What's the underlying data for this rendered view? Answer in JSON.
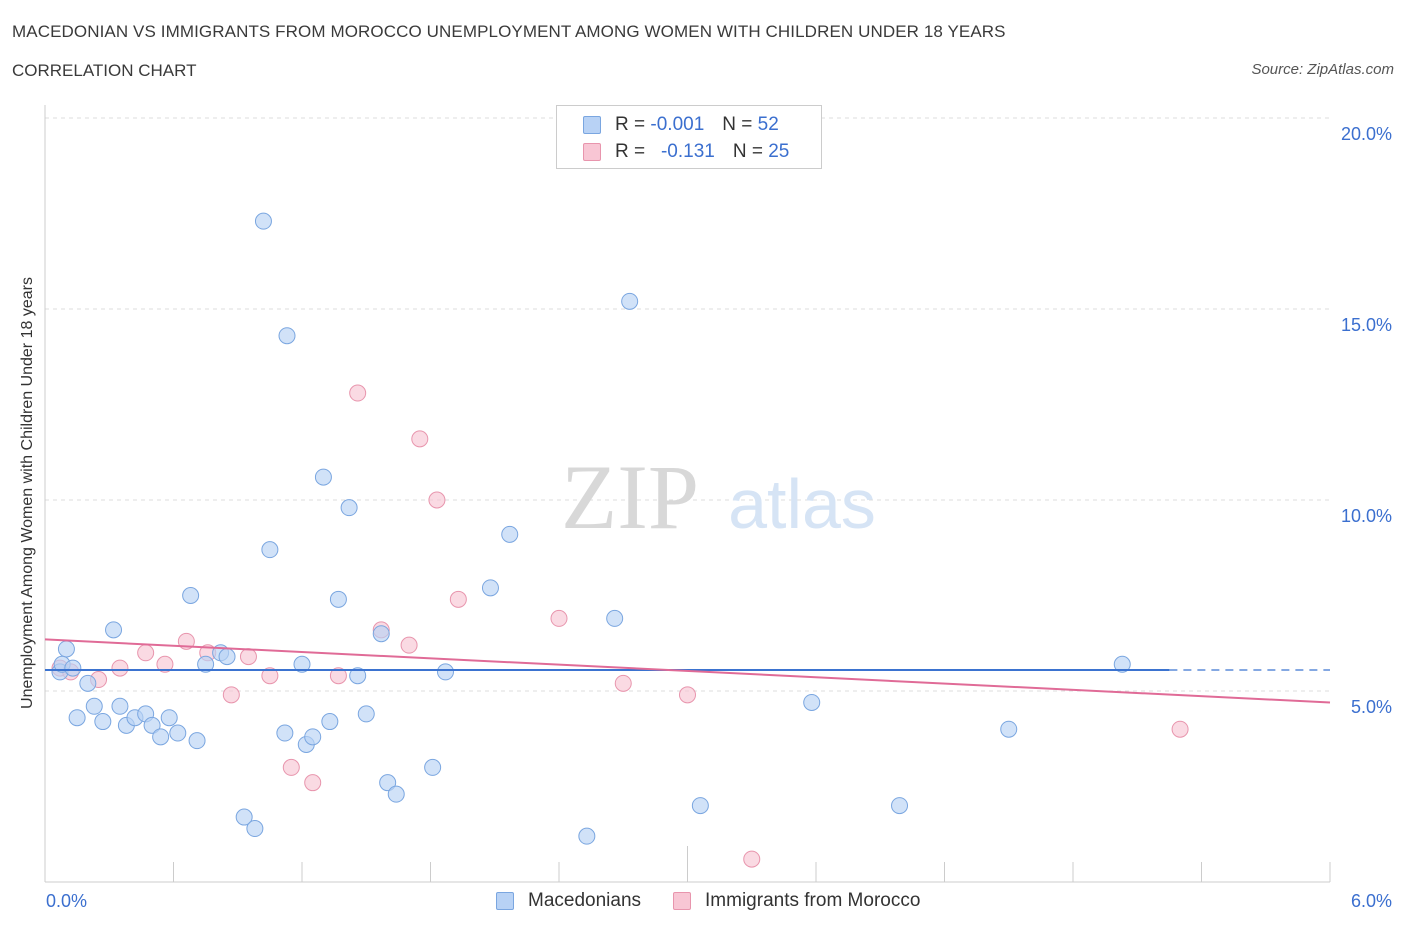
{
  "header": {
    "title": "MACEDONIAN VS IMMIGRANTS FROM MOROCCO UNEMPLOYMENT AMONG WOMEN WITH CHILDREN UNDER 18 YEARS",
    "subtitle": "CORRELATION CHART",
    "source": "Source: ZipAtlas.com"
  },
  "watermark": {
    "zip": "ZIP",
    "atlas": "atlas"
  },
  "colors": {
    "blue_fill": "#b8d2f5",
    "blue_stroke": "#7aa6e0",
    "blue_line": "#3b73d0",
    "pink_fill": "#f8c6d4",
    "pink_stroke": "#e895ad",
    "pink_line": "#e06b97",
    "grid": "#dcdcdc",
    "tick_label": "#3b6fcf"
  },
  "legend": {
    "rows": [
      {
        "r_label": "R =",
        "r_value": "-0.001",
        "n_label": "N =",
        "n_value": "52"
      },
      {
        "r_label": "R =",
        "r_value": "-0.131",
        "n_label": "N =",
        "n_value": "25"
      }
    ]
  },
  "bottom_legend": {
    "items": [
      "Macedonians",
      "Immigrants from Morocco"
    ]
  },
  "chart_data": {
    "type": "scatter",
    "ylabel": "Unemployment Among Women with Children Under 18 years",
    "xlim": [
      0,
      6
    ],
    "ylim": [
      0,
      20
    ],
    "x_tick_labels": [
      "0.0%",
      "6.0%"
    ],
    "y_ticks": [
      5,
      10,
      15,
      20
    ],
    "y_tick_labels": [
      "5.0%",
      "10.0%",
      "15.0%",
      "20.0%"
    ],
    "grid": true,
    "series": [
      {
        "name": "Macedonians",
        "points": [
          [
            0.07,
            5.5
          ],
          [
            0.1,
            6.1
          ],
          [
            0.15,
            4.3
          ],
          [
            0.2,
            5.2
          ],
          [
            0.23,
            4.6
          ],
          [
            0.27,
            4.2
          ],
          [
            0.32,
            6.6
          ],
          [
            0.35,
            4.6
          ],
          [
            0.38,
            4.1
          ],
          [
            0.42,
            4.3
          ],
          [
            0.47,
            4.4
          ],
          [
            0.5,
            4.1
          ],
          [
            0.54,
            3.8
          ],
          [
            0.58,
            4.3
          ],
          [
            0.62,
            3.9
          ],
          [
            0.68,
            7.5
          ],
          [
            0.71,
            3.7
          ],
          [
            0.75,
            5.7
          ],
          [
            0.82,
            6.0
          ],
          [
            0.85,
            5.9
          ],
          [
            0.93,
            1.7
          ],
          [
            0.98,
            1.4
          ],
          [
            1.02,
            17.3
          ],
          [
            1.05,
            8.7
          ],
          [
            1.12,
            3.9
          ],
          [
            1.13,
            14.3
          ],
          [
            1.2,
            5.7
          ],
          [
            1.22,
            3.6
          ],
          [
            1.25,
            3.8
          ],
          [
            1.3,
            10.6
          ],
          [
            1.33,
            4.2
          ],
          [
            1.37,
            7.4
          ],
          [
            1.42,
            9.8
          ],
          [
            1.46,
            5.4
          ],
          [
            1.5,
            4.4
          ],
          [
            1.57,
            6.5
          ],
          [
            1.6,
            2.6
          ],
          [
            1.64,
            2.3
          ],
          [
            1.81,
            3.0
          ],
          [
            1.87,
            5.5
          ],
          [
            2.08,
            7.7
          ],
          [
            2.17,
            9.1
          ],
          [
            2.53,
            1.2
          ],
          [
            2.66,
            6.9
          ],
          [
            2.73,
            15.2
          ],
          [
            3.06,
            2.0
          ],
          [
            3.58,
            4.7
          ],
          [
            3.99,
            2.0
          ],
          [
            4.5,
            4.0
          ],
          [
            5.03,
            5.7
          ],
          [
            0.08,
            5.7
          ],
          [
            0.13,
            5.6
          ]
        ],
        "trend": {
          "x": [
            0.0,
            5.25
          ],
          "y": [
            5.55,
            5.55
          ],
          "dashed_to_x": 6.0
        }
      },
      {
        "name": "Immigrants from Morocco",
        "points": [
          [
            0.07,
            5.6
          ],
          [
            0.12,
            5.5
          ],
          [
            0.25,
            5.3
          ],
          [
            0.35,
            5.6
          ],
          [
            0.47,
            6.0
          ],
          [
            0.56,
            5.7
          ],
          [
            0.66,
            6.3
          ],
          [
            0.76,
            6.0
          ],
          [
            0.87,
            4.9
          ],
          [
            0.95,
            5.9
          ],
          [
            1.05,
            5.4
          ],
          [
            1.15,
            3.0
          ],
          [
            1.25,
            2.6
          ],
          [
            1.37,
            5.4
          ],
          [
            1.46,
            12.8
          ],
          [
            1.57,
            6.6
          ],
          [
            1.7,
            6.2
          ],
          [
            1.75,
            11.6
          ],
          [
            1.83,
            10.0
          ],
          [
            1.93,
            7.4
          ],
          [
            2.4,
            6.9
          ],
          [
            2.7,
            5.2
          ],
          [
            3.0,
            4.9
          ],
          [
            3.3,
            0.6
          ],
          [
            5.3,
            4.0
          ]
        ],
        "trend": {
          "x": [
            0.0,
            6.0
          ],
          "y": [
            6.35,
            4.7
          ]
        }
      }
    ]
  }
}
